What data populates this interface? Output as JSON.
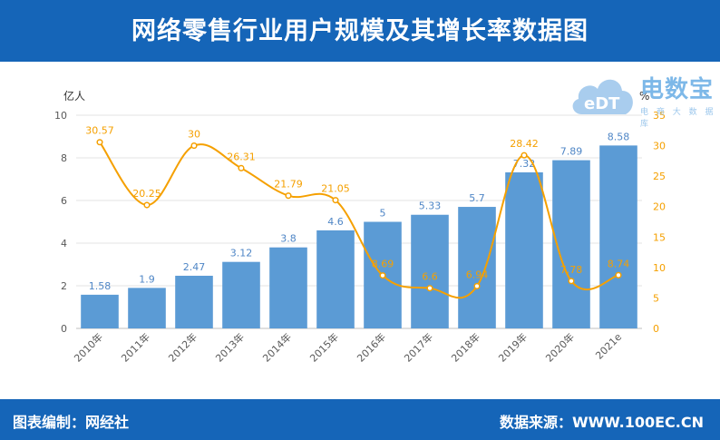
{
  "header": {
    "title": "网络零售行业用户规模及其增长率数据图"
  },
  "footer": {
    "credit": "图表编制：网经社",
    "source": "数据来源：WWW.100EC.CN"
  },
  "logo": {
    "name": "电数宝",
    "subtitle": "电 商 大 数 据 库",
    "mark_text": "eDT"
  },
  "colors": {
    "header_bg": "#1565b8",
    "bar": "#5b9bd5",
    "line": "#f5a000",
    "grid": "#e3e3e3"
  },
  "chart_data": {
    "type": "bar",
    "categories": [
      "2010年",
      "2011年",
      "2012年",
      "2013年",
      "2014年",
      "2015年",
      "2016年",
      "2017年",
      "2018年",
      "2019年",
      "2020年",
      "2021e"
    ],
    "series": [
      {
        "type": "bar",
        "axis": "left",
        "values": [
          1.58,
          1.9,
          2.47,
          3.12,
          3.8,
          4.6,
          5,
          5.33,
          5.7,
          7.32,
          7.89,
          8.58
        ]
      },
      {
        "type": "line",
        "axis": "right",
        "values": [
          30.57,
          20.25,
          30,
          26.31,
          21.79,
          21.05,
          8.69,
          6.6,
          6.94,
          28.42,
          7.78,
          8.74
        ]
      }
    ],
    "left_axis": {
      "unit": "亿人",
      "ylim": [
        0,
        10
      ],
      "ticks": [
        "0",
        "2",
        "4",
        "6",
        "8",
        "10"
      ]
    },
    "right_axis": {
      "unit": "%",
      "ylim": [
        0,
        35
      ],
      "ticks": [
        "0",
        "5",
        "10",
        "15",
        "20",
        "25",
        "30",
        "35"
      ]
    },
    "grid": true,
    "legend": "none"
  }
}
